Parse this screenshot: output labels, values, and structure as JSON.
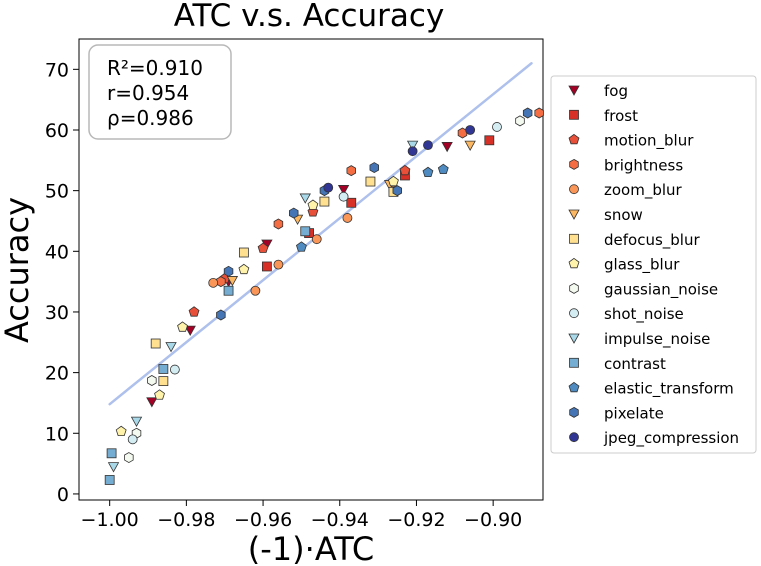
{
  "chart_data": {
    "type": "scatter",
    "title": "ATC  v.s.  Accuracy",
    "xlabel": "(-1)·ATC",
    "ylabel": "Accuracy",
    "xlim": [
      -1.008,
      -0.887
    ],
    "ylim": [
      -1.0,
      75.0
    ],
    "xticks": [
      -1.0,
      -0.98,
      -0.96,
      -0.94,
      -0.92,
      -0.9
    ],
    "xtick_labels": [
      "−1.00",
      "−0.98",
      "−0.96",
      "−0.94",
      "−0.92",
      "−0.90"
    ],
    "yticks": [
      0,
      10,
      20,
      30,
      40,
      50,
      60,
      70
    ],
    "ytick_labels": [
      "0",
      "10",
      "20",
      "30",
      "40",
      "50",
      "60",
      "70"
    ],
    "grid": false,
    "legend_position": "outside-right",
    "fit_line": {
      "x": [
        -1.0,
        -0.89
      ],
      "y": [
        14.8,
        71.0
      ],
      "color": "#aec0ec"
    },
    "annotation": [
      "R²=0.910",
      "r=0.954",
      "ρ=0.986"
    ],
    "series": [
      {
        "name": "fog",
        "marker": "triangle-down",
        "color": "#a50026",
        "points": [
          [
            -0.989,
            15.2
          ],
          [
            -0.979,
            27.0
          ],
          [
            -0.969,
            35.0
          ],
          [
            -0.959,
            41.2
          ],
          [
            -0.939,
            50.2
          ],
          [
            -0.912,
            57.3
          ]
        ]
      },
      {
        "name": "frost",
        "marker": "square",
        "color": "#d73027",
        "points": [
          [
            -0.959,
            37.5
          ],
          [
            -0.948,
            43.0
          ],
          [
            -0.937,
            48.0
          ],
          [
            -0.923,
            52.5
          ],
          [
            -0.901,
            58.3
          ]
        ]
      },
      {
        "name": "motion_blur",
        "marker": "pentagon",
        "color": "#e8503a",
        "points": [
          [
            -0.978,
            30.0
          ],
          [
            -0.97,
            35.5
          ],
          [
            -0.96,
            40.5
          ],
          [
            -0.947,
            46.5
          ],
          [
            -0.923,
            53.3
          ]
        ]
      },
      {
        "name": "brightness",
        "marker": "hexagon",
        "color": "#f46d43",
        "points": [
          [
            -0.971,
            35.0
          ],
          [
            -0.956,
            44.5
          ],
          [
            -0.937,
            53.3
          ],
          [
            -0.908,
            59.5
          ],
          [
            -0.888,
            62.8
          ]
        ]
      },
      {
        "name": "zoom_blur",
        "marker": "circle",
        "color": "#f99658",
        "points": [
          [
            -0.973,
            34.8
          ],
          [
            -0.962,
            33.5
          ],
          [
            -0.956,
            37.8
          ],
          [
            -0.946,
            42.0
          ],
          [
            -0.938,
            45.5
          ],
          [
            -0.926,
            50.0
          ]
        ]
      },
      {
        "name": "snow",
        "marker": "triangle-down",
        "color": "#fdb863",
        "points": [
          [
            -0.968,
            35.2
          ],
          [
            -0.951,
            45.3
          ],
          [
            -0.927,
            51.0
          ],
          [
            -0.906,
            57.5
          ]
        ]
      },
      {
        "name": "defocus_blur",
        "marker": "square",
        "color": "#fee090",
        "points": [
          [
            -0.988,
            24.8
          ],
          [
            -0.986,
            18.6
          ],
          [
            -0.965,
            39.8
          ],
          [
            -0.944,
            48.2
          ],
          [
            -0.932,
            51.5
          ],
          [
            -0.926,
            49.8
          ]
        ]
      },
      {
        "name": "glass_blur",
        "marker": "pentagon",
        "color": "#fff3ab",
        "points": [
          [
            -0.997,
            10.3
          ],
          [
            -0.987,
            16.3
          ],
          [
            -0.981,
            27.5
          ],
          [
            -0.965,
            37.0
          ],
          [
            -0.947,
            47.6
          ],
          [
            -0.926,
            51.5
          ]
        ]
      },
      {
        "name": "gaussian_noise",
        "marker": "hexagon",
        "color": "#f5faf0",
        "points": [
          [
            -0.995,
            6.0
          ],
          [
            -0.993,
            10.0
          ],
          [
            -0.989,
            18.7
          ],
          [
            -0.893,
            61.5
          ]
        ]
      },
      {
        "name": "shot_noise",
        "marker": "circle",
        "color": "#d4edf3",
        "points": [
          [
            -0.994,
            9.0
          ],
          [
            -0.983,
            20.5
          ],
          [
            -0.939,
            49.0
          ],
          [
            -0.899,
            60.5
          ]
        ]
      },
      {
        "name": "impulse_noise",
        "marker": "triangle-down",
        "color": "#a9d8e8",
        "points": [
          [
            -0.999,
            4.5
          ],
          [
            -0.993,
            12.0
          ],
          [
            -0.984,
            24.3
          ],
          [
            -0.949,
            48.8
          ],
          [
            -0.921,
            57.5
          ]
        ]
      },
      {
        "name": "contrast",
        "marker": "square",
        "color": "#74add1",
        "points": [
          [
            -1.0,
            2.3
          ],
          [
            -0.9995,
            6.7
          ],
          [
            -0.986,
            20.6
          ],
          [
            -0.969,
            33.5
          ],
          [
            -0.949,
            43.3
          ]
        ]
      },
      {
        "name": "elastic_transform",
        "marker": "pentagon",
        "color": "#4f8bc0",
        "points": [
          [
            -0.95,
            40.7
          ],
          [
            -0.917,
            53.0
          ],
          [
            -0.913,
            53.5
          ]
        ]
      },
      {
        "name": "pixelate",
        "marker": "hexagon",
        "color": "#4575b4",
        "points": [
          [
            -0.971,
            29.5
          ],
          [
            -0.969,
            36.7
          ],
          [
            -0.952,
            46.3
          ],
          [
            -0.944,
            50.0
          ],
          [
            -0.931,
            53.8
          ],
          [
            -0.925,
            50.0
          ],
          [
            -0.891,
            62.8
          ]
        ]
      },
      {
        "name": "jpeg_compression",
        "marker": "circle",
        "color": "#313695",
        "points": [
          [
            -0.943,
            50.5
          ],
          [
            -0.921,
            56.5
          ],
          [
            -0.917,
            57.5
          ],
          [
            -0.906,
            60.0
          ]
        ]
      }
    ]
  }
}
